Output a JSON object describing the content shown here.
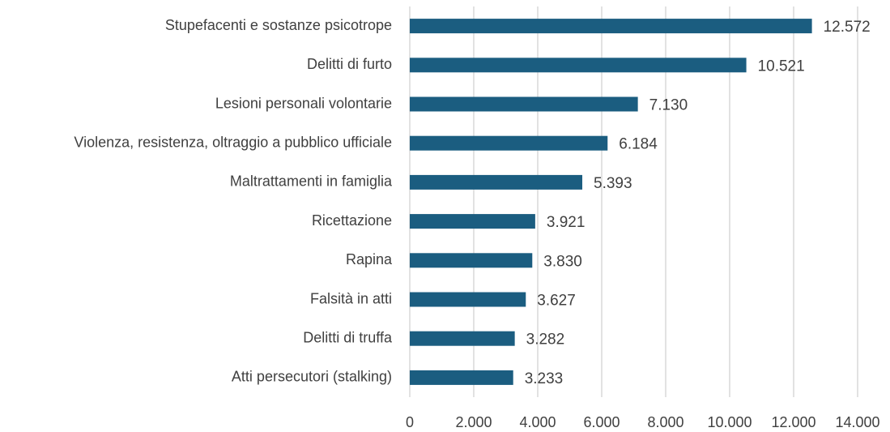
{
  "chart_data": {
    "type": "bar",
    "orientation": "horizontal",
    "categories": [
      "Stupefacenti e sostanze psicotrope",
      "Delitti di furto",
      "Lesioni personali volontarie",
      "Violenza, resistenza, oltraggio a pubblico ufficiale",
      "Maltrattamenti in famiglia",
      "Ricettazione",
      "Rapina",
      "Falsità in atti",
      "Delitti di truffa",
      "Atti persecutori (stalking)"
    ],
    "values": [
      12572,
      10521,
      7130,
      6184,
      5393,
      3921,
      3830,
      3627,
      3282,
      3233
    ],
    "value_labels": [
      "12.572",
      "10.521",
      "7.130",
      "6.184",
      "5.393",
      "3.921",
      "3.830",
      "3.627",
      "3.282",
      "3.233"
    ],
    "color": "#1b5d80",
    "xlim": [
      0,
      14000
    ],
    "xticks": [
      0,
      {
        "value": 2000,
        "label": "2.000"
      },
      {
        "value": 4000,
        "label": "4.000"
      },
      {
        "value": 6000,
        "label": "6.000"
      },
      {
        "value": 8000,
        "label": "8.000"
      },
      {
        "value": 10000,
        "label": "10.000"
      },
      {
        "value": 12000,
        "label": "12.000"
      },
      {
        "value": 14000,
        "label": "14.000"
      }
    ],
    "grid": true
  }
}
